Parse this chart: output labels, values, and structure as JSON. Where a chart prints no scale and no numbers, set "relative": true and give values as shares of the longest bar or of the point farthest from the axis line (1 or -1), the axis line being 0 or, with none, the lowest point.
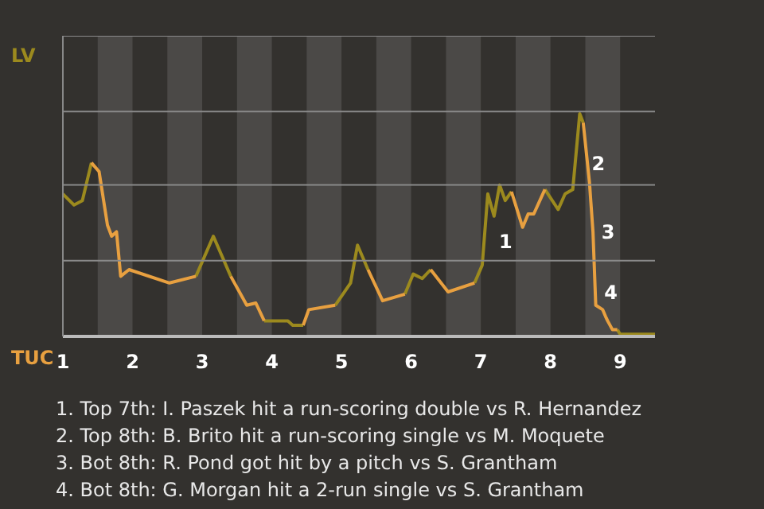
{
  "chart_data": {
    "type": "line",
    "relative": true,
    "x": [
      1,
      1.16,
      1.28,
      1.41,
      1.52,
      1.64,
      1.7,
      1.77,
      1.83,
      1.95,
      2.53,
      2.91,
      3.16,
      3.41,
      3.64,
      3.77,
      3.89,
      4.05,
      4.09,
      4.23,
      4.3,
      4.45,
      4.53,
      4.91,
      5.13,
      5.23,
      5.38,
      5.59,
      5.91,
      6.03,
      6.16,
      6.28,
      6.53,
      6.91,
      7.02,
      7.1,
      7.19,
      7.27,
      7.35,
      7.44,
      7.6,
      7.68,
      7.76,
      7.92,
      8.11,
      8.21,
      8.32,
      8.42,
      8.47,
      8.56,
      8.61,
      8.65,
      8.75,
      8.79,
      8.82,
      8.89,
      8.96,
      9,
      9.5
    ],
    "series": [
      {
        "color": "#9c8a1e",
        "values": [
          0.64,
          0.59,
          0.61,
          0.78,
          null,
          null,
          null,
          null,
          null,
          null,
          null,
          0.27,
          0.45,
          0.27,
          null,
          null,
          0.07,
          0.07,
          0.07,
          0.07,
          0.05,
          0.05,
          null,
          0.14,
          0.24,
          0.41,
          0.3,
          null,
          0.19,
          0.28,
          0.26,
          0.3,
          null,
          0.24,
          0.32,
          0.64,
          0.54,
          0.68,
          0.61,
          0.65,
          null,
          null,
          null,
          0.66,
          0.57,
          0.64,
          0.66,
          1,
          0.96,
          null,
          null,
          null,
          null,
          null,
          null,
          null,
          0.03,
          0.01,
          0.01
        ]
      },
      {
        "color": "#e8a040",
        "values": [
          null,
          null,
          null,
          0.78,
          0.74,
          0.5,
          0.45,
          0.47,
          0.27,
          0.3,
          0.24,
          0.27,
          null,
          0.27,
          0.14,
          0.15,
          0.07,
          null,
          null,
          null,
          null,
          0.05,
          0.12,
          0.14,
          null,
          null,
          0.3,
          0.16,
          0.19,
          null,
          null,
          0.3,
          0.2,
          0.24,
          null,
          null,
          null,
          null,
          null,
          0.65,
          0.49,
          0.55,
          0.55,
          0.66,
          null,
          null,
          null,
          null,
          0.96,
          0.69,
          0.47,
          0.14,
          0.12,
          0.09,
          0.07,
          0.03,
          0.03,
          null,
          null
        ]
      }
    ],
    "xlim": [
      1,
      9.5
    ],
    "xticks": [
      1,
      2,
      3,
      4,
      5,
      6,
      7,
      8,
      9
    ],
    "ref_lines": [
      {
        "axis": "y",
        "value": 0.34,
        "color": "#8a8a8a"
      },
      {
        "axis": "y",
        "value": 0.68,
        "color": "#8a8a8a"
      },
      {
        "axis": "y",
        "value": 1.01,
        "color": "#8a8a8a"
      },
      {
        "axis": "y",
        "value": 1.35,
        "color": "#8a8a8a"
      }
    ],
    "bands": [
      {
        "axis": "x",
        "from": 1.5,
        "to": 2,
        "color": "#4b4947"
      },
      {
        "axis": "x",
        "from": 2.5,
        "to": 3,
        "color": "#4b4947"
      },
      {
        "axis": "x",
        "from": 3.5,
        "to": 4,
        "color": "#4b4947"
      },
      {
        "axis": "x",
        "from": 4.5,
        "to": 5,
        "color": "#4b4947"
      },
      {
        "axis": "x",
        "from": 5.5,
        "to": 6,
        "color": "#4b4947"
      },
      {
        "axis": "x",
        "from": 6.5,
        "to": 7,
        "color": "#4b4947"
      },
      {
        "axis": "x",
        "from": 7.5,
        "to": 8,
        "color": "#4b4947"
      },
      {
        "axis": "x",
        "from": 8.5,
        "to": 9,
        "color": "#4b4947"
      }
    ],
    "annotations": [
      "LV",
      "TUC",
      {
        "text": "1",
        "x": 7.17,
        "y": 0.43
      },
      {
        "text": "2",
        "x": 8.5,
        "y": 0.78
      },
      {
        "text": "3",
        "x": 8.64,
        "y": 0.47
      },
      {
        "text": "4",
        "x": 8.68,
        "y": 0.2
      },
      "1. Top 7th: I. Paszek hit a run-scoring double vs R. Hernandez",
      "2. Top 8th: B. Brito hit a run-scoring single vs M. Moquete",
      "3. Bot 8th: R. Pond got hit by a pitch vs S. Grantham",
      "4. Bot 8th: G. Morgan hit a 2-run single vs S. Grantham"
    ]
  }
}
